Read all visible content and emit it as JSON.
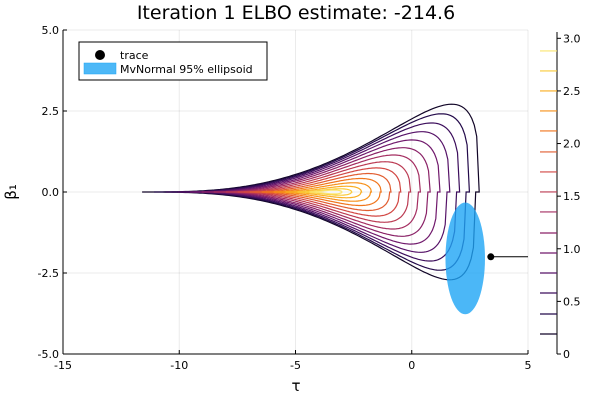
{
  "chart_data": {
    "type": "contour",
    "title": "Iteration 1  ELBO estimate: -214.6",
    "xlabel": "τ",
    "ylabel": "β₁",
    "xlim": [
      -15,
      5
    ],
    "ylim": [
      -5,
      5
    ],
    "xticks": [
      "-15",
      "-10",
      "-5",
      "0",
      "5"
    ],
    "yticks": [
      "-5.0",
      "-2.5",
      "0.0",
      "2.5",
      "5.0"
    ],
    "xtick_values": [
      -15,
      -10,
      -5,
      0,
      5
    ],
    "ytick_values": [
      -5,
      -2.5,
      0,
      2.5,
      5
    ],
    "grid": true,
    "legend": {
      "placement": "top-left",
      "entries": [
        "trace",
        "MvNormal 95% ellipsoid"
      ]
    },
    "colorbar": {
      "range": [
        0,
        3.06
      ],
      "ticks": [
        "0",
        "0.5",
        "1.0",
        "1.5",
        "2.0",
        "2.5",
        "3.0"
      ],
      "tick_values": [
        0,
        0.5,
        1,
        1.5,
        2,
        2.5,
        3
      ],
      "levels": [
        0.19,
        0.38,
        0.58,
        0.77,
        0.96,
        1.15,
        1.35,
        1.54,
        1.73,
        1.92,
        2.12,
        2.31,
        2.5,
        2.69,
        2.88
      ]
    },
    "trace": [
      {
        "x": 3.4,
        "y": -2.0
      },
      {
        "x": 5,
        "y": -2.0
      }
    ],
    "ellipse": {
      "center": [
        2.3,
        -2.05
      ],
      "width": 1.7,
      "height": 3.45
    },
    "colors": {
      "ellipse": "#1ea5f5",
      "trace": "#000000"
    }
  }
}
